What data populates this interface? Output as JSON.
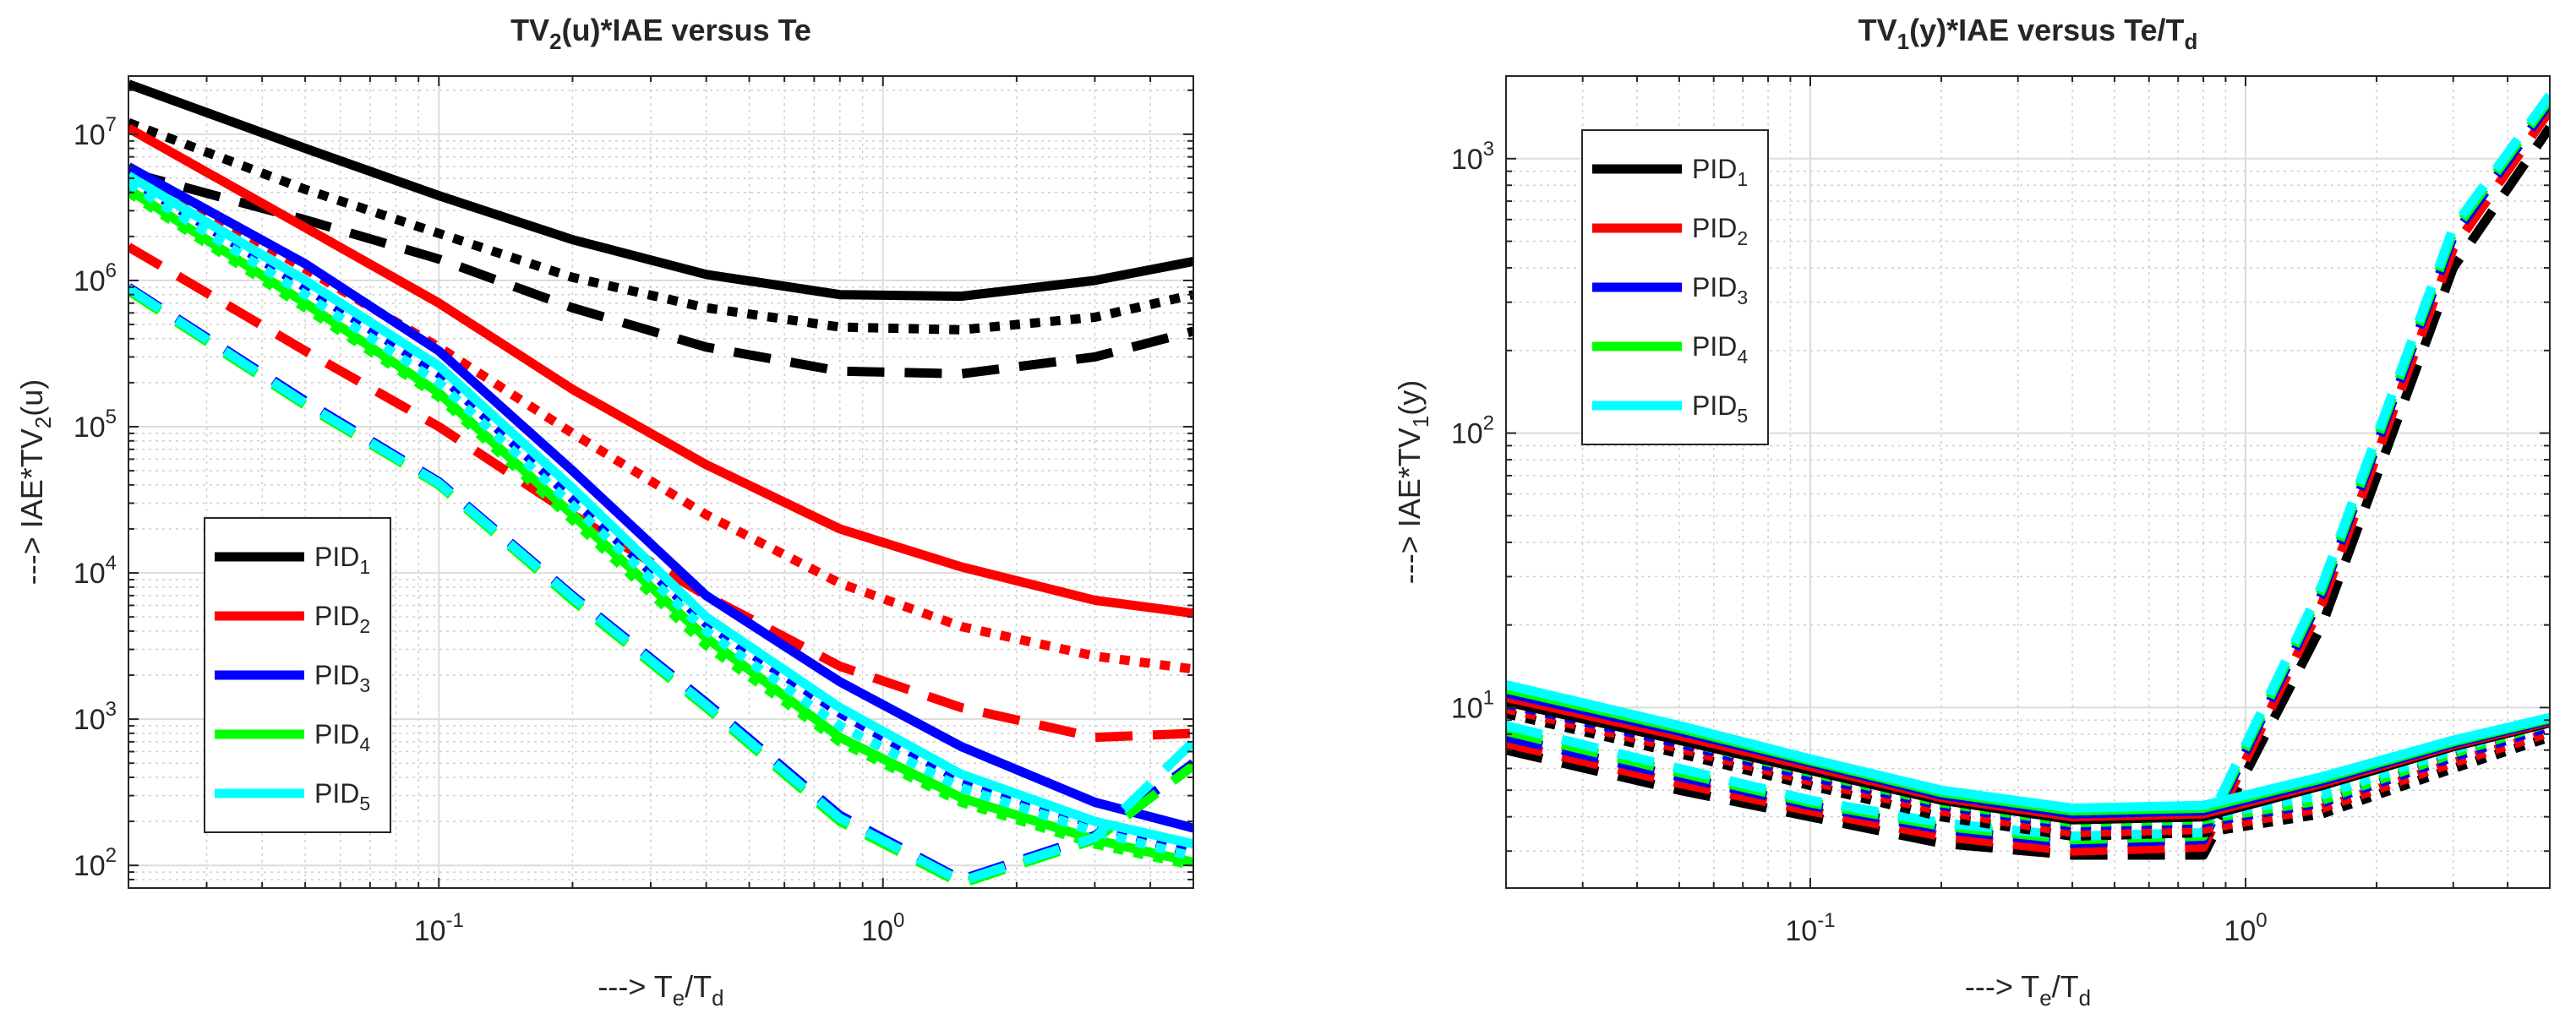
{
  "chart_data": [
    {
      "type": "line",
      "scale": "loglog",
      "title_parts": [
        {
          "t": "TV",
          "s": "n"
        },
        {
          "t": "2",
          "s": "sub"
        },
        {
          "t": "(u)*IAE versus Te",
          "s": "n"
        }
      ],
      "xlabel_parts": [
        {
          "t": "---> T",
          "s": "n"
        },
        {
          "t": "e",
          "s": "sub"
        },
        {
          "t": "/T",
          "s": "n"
        },
        {
          "t": "d",
          "s": "sub"
        }
      ],
      "ylabel_parts": [
        {
          "t": "---> IAE*TV",
          "s": "n"
        },
        {
          "t": "2",
          "s": "sub"
        },
        {
          "t": "(u)",
          "s": "n"
        }
      ],
      "xlim": [
        0.02,
        5
      ],
      "ylim": [
        70,
        25000000
      ],
      "grid": true,
      "minor_grid": true,
      "legend_position": "bottom-left",
      "legend": [
        {
          "base": "PID",
          "sub": "1",
          "color": "#000000"
        },
        {
          "base": "PID",
          "sub": "2",
          "color": "#ff0000"
        },
        {
          "base": "PID",
          "sub": "3",
          "color": "#0000ff"
        },
        {
          "base": "PID",
          "sub": "4",
          "color": "#00ff00"
        },
        {
          "base": "PID",
          "sub": "5",
          "color": "#00ffff"
        }
      ],
      "x_ticks": [
        {
          "base": "10",
          "exp": "-1",
          "value": 0.1
        },
        {
          "base": "10",
          "exp": "0",
          "value": 1
        }
      ],
      "y_ticks": [
        {
          "base": "10",
          "exp": "2",
          "value": 100
        },
        {
          "base": "10",
          "exp": "3",
          "value": 1000
        },
        {
          "base": "10",
          "exp": "4",
          "value": 10000
        },
        {
          "base": "10",
          "exp": "5",
          "value": 100000
        },
        {
          "base": "10",
          "exp": "6",
          "value": 1000000
        },
        {
          "base": "10",
          "exp": "7",
          "value": 10000000
        }
      ],
      "x": [
        0.02,
        0.05,
        0.1,
        0.2,
        0.4,
        0.8,
        1.5,
        3,
        5
      ],
      "series": [
        {
          "name": "PID1 solid",
          "color": "#000000",
          "style": "solid",
          "values": [
            22000000,
            8000000,
            3800000,
            1900000,
            1100000,
            800000,
            780000,
            1000000,
            1350000
          ]
        },
        {
          "name": "PID1 dotted",
          "color": "#000000",
          "style": "dotted",
          "values": [
            12000000,
            4200000,
            2100000,
            1050000,
            650000,
            480000,
            460000,
            560000,
            800000
          ]
        },
        {
          "name": "PID1 dashed",
          "color": "#000000",
          "style": "dashed",
          "values": [
            5500000,
            2600000,
            1400000,
            650000,
            350000,
            240000,
            230000,
            300000,
            450000
          ]
        },
        {
          "name": "PID2 solid",
          "color": "#ff0000",
          "style": "solid",
          "values": [
            11000000,
            2300000,
            700000,
            180000,
            55000,
            20000,
            11000,
            6500,
            5300
          ]
        },
        {
          "name": "PID2 dotted",
          "color": "#ff0000",
          "style": "dotted",
          "values": [
            6000000,
            1200000,
            350000,
            90000,
            25000,
            8500,
            4300,
            2700,
            2200
          ]
        },
        {
          "name": "PID2 dashed",
          "color": "#ff0000",
          "style": "dashed",
          "values": [
            1700000,
            330000,
            100000,
            25000,
            7000,
            2300,
            1200,
            750,
            800
          ]
        },
        {
          "name": "PID3 solid",
          "color": "#0000ff",
          "style": "solid",
          "values": [
            6000000,
            1300000,
            330000,
            50000,
            7000,
            1800,
            650,
            270,
            180
          ]
        },
        {
          "name": "PID3 dotted",
          "color": "#0000ff",
          "style": "dotted",
          "values": [
            5000000,
            900000,
            230000,
            32000,
            4500,
            1100,
            380,
            190,
            120
          ]
        },
        {
          "name": "PID3 dashed",
          "color": "#0000ff",
          "style": "dashed",
          "values": [
            900000,
            150000,
            42000,
            7000,
            1300,
            220,
            80,
            160,
            500
          ]
        },
        {
          "name": "PID4 solid",
          "color": "#00ff00",
          "style": "solid",
          "values": [
            4200000,
            700000,
            170000,
            25000,
            3600,
            750,
            290,
            150,
            105
          ]
        },
        {
          "name": "PID4 dotted",
          "color": "#00ff00",
          "style": "dotted",
          "values": [
            4000000,
            650000,
            160000,
            23000,
            3200,
            700,
            270,
            140,
            100
          ]
        },
        {
          "name": "PID4 dashed",
          "color": "#00ff00",
          "style": "dashed",
          "values": [
            850000,
            140000,
            40000,
            6500,
            1200,
            200,
            75,
            150,
            480
          ]
        },
        {
          "name": "PID5 solid",
          "color": "#00ffff",
          "style": "solid",
          "values": [
            5200000,
            1000000,
            260000,
            38000,
            5000,
            1200,
            420,
            200,
            140
          ]
        },
        {
          "name": "PID5 dotted",
          "color": "#00ffff",
          "style": "dotted",
          "values": [
            4600000,
            800000,
            200000,
            29000,
            4000,
            900,
            340,
            170,
            115
          ]
        },
        {
          "name": "PID5 dashed",
          "color": "#00ffff",
          "style": "dashed",
          "values": [
            880000,
            145000,
            41000,
            6800,
            1250,
            210,
            78,
            155,
            700
          ]
        }
      ]
    },
    {
      "type": "line",
      "scale": "loglog",
      "title_parts": [
        {
          "t": "TV",
          "s": "n"
        },
        {
          "t": "1",
          "s": "sub"
        },
        {
          "t": "(y)*IAE versus Te/T",
          "s": "n"
        },
        {
          "t": "d",
          "s": "sub"
        }
      ],
      "xlabel_parts": [
        {
          "t": "---> T",
          "s": "n"
        },
        {
          "t": "e",
          "s": "sub"
        },
        {
          "t": "/T",
          "s": "n"
        },
        {
          "t": "d",
          "s": "sub"
        }
      ],
      "ylabel_parts": [
        {
          "t": "---> IAE*TV",
          "s": "n"
        },
        {
          "t": "1",
          "s": "sub"
        },
        {
          "t": "(y)",
          "s": "n"
        }
      ],
      "xlim": [
        0.02,
        5
      ],
      "ylim": [
        2.2,
        2000
      ],
      "grid": true,
      "minor_grid": true,
      "legend_position": "top-left",
      "legend": [
        {
          "base": "PID",
          "sub": "1",
          "color": "#000000"
        },
        {
          "base": "PID",
          "sub": "2",
          "color": "#ff0000"
        },
        {
          "base": "PID",
          "sub": "3",
          "color": "#0000ff"
        },
        {
          "base": "PID",
          "sub": "4",
          "color": "#00ff00"
        },
        {
          "base": "PID",
          "sub": "5",
          "color": "#00ffff"
        }
      ],
      "x_ticks": [
        {
          "base": "10",
          "exp": "-1",
          "value": 0.1
        },
        {
          "base": "10",
          "exp": "0",
          "value": 1
        }
      ],
      "y_ticks": [
        {
          "base": "10",
          "exp": "1",
          "value": 10
        },
        {
          "base": "10",
          "exp": "2",
          "value": 100
        },
        {
          "base": "10",
          "exp": "3",
          "value": 1000
        }
      ],
      "x": [
        0.02,
        0.05,
        0.1,
        0.2,
        0.4,
        0.8,
        1.5,
        3,
        5
      ],
      "series": [
        {
          "name": "PID1 dashed",
          "color": "#000000",
          "style": "dashed",
          "values": [
            7.0,
            5.0,
            4.0,
            3.2,
            2.9,
            2.9,
            20,
            400,
            1300
          ]
        },
        {
          "name": "PID2 dashed",
          "color": "#ff0000",
          "style": "dashed",
          "values": [
            7.4,
            5.3,
            4.2,
            3.4,
            3.0,
            3.1,
            24,
            470,
            1500
          ]
        },
        {
          "name": "PID3 dashed",
          "color": "#0000ff",
          "style": "dashed",
          "values": [
            7.8,
            5.6,
            4.4,
            3.6,
            3.2,
            3.3,
            26,
            520,
            1600
          ]
        },
        {
          "name": "PID4 dashed",
          "color": "#00ff00",
          "style": "dashed",
          "values": [
            8.2,
            5.8,
            4.5,
            3.7,
            3.3,
            3.4,
            27,
            540,
            1650
          ]
        },
        {
          "name": "PID5 dashed",
          "color": "#00ffff",
          "style": "dashed",
          "values": [
            8.6,
            6.0,
            4.6,
            3.8,
            3.4,
            3.5,
            28,
            560,
            1700
          ]
        },
        {
          "name": "PID1 dotted",
          "color": "#000000",
          "style": "dotted",
          "values": [
            9.5,
            6.8,
            5.2,
            4.0,
            3.4,
            3.5,
            4.1,
            6.0,
            7.8
          ]
        },
        {
          "name": "PID2 dotted",
          "color": "#ff0000",
          "style": "dotted",
          "values": [
            9.9,
            7.1,
            5.4,
            4.2,
            3.5,
            3.6,
            4.3,
            6.3,
            8.1
          ]
        },
        {
          "name": "PID3 dotted",
          "color": "#0000ff",
          "style": "dotted",
          "values": [
            10.3,
            7.4,
            5.6,
            4.4,
            3.7,
            3.8,
            4.5,
            6.6,
            8.5
          ]
        },
        {
          "name": "PID4 dotted",
          "color": "#00ff00",
          "style": "dotted",
          "values": [
            10.7,
            7.6,
            5.8,
            4.5,
            3.8,
            3.9,
            4.6,
            6.8,
            8.8
          ]
        },
        {
          "name": "PID5 dotted",
          "color": "#00ffff",
          "style": "dotted",
          "values": [
            11.0,
            7.8,
            6.0,
            4.6,
            3.9,
            4.0,
            4.8,
            7.0,
            9.0
          ]
        },
        {
          "name": "PID1 solid",
          "color": "#000000",
          "style": "solid",
          "values": [
            10.5,
            7.6,
            5.9,
            4.6,
            3.9,
            4.0,
            5.2,
            7.2,
            8.8
          ]
        },
        {
          "name": "PID2 solid",
          "color": "#ff0000",
          "style": "solid",
          "values": [
            10.9,
            7.9,
            6.1,
            4.7,
            4.0,
            4.1,
            5.3,
            7.3,
            8.9
          ]
        },
        {
          "name": "PID3 solid",
          "color": "#0000ff",
          "style": "solid",
          "values": [
            11.3,
            8.2,
            6.3,
            4.8,
            4.1,
            4.2,
            5.4,
            7.4,
            9.0
          ]
        },
        {
          "name": "PID4 solid",
          "color": "#00ff00",
          "style": "solid",
          "values": [
            11.7,
            8.4,
            6.4,
            4.9,
            4.2,
            4.3,
            5.5,
            7.5,
            9.1
          ]
        },
        {
          "name": "PID5 solid",
          "color": "#00ffff",
          "style": "solid",
          "values": [
            12.1,
            8.6,
            6.5,
            5.0,
            4.3,
            4.4,
            5.6,
            7.6,
            9.2
          ]
        }
      ]
    }
  ]
}
